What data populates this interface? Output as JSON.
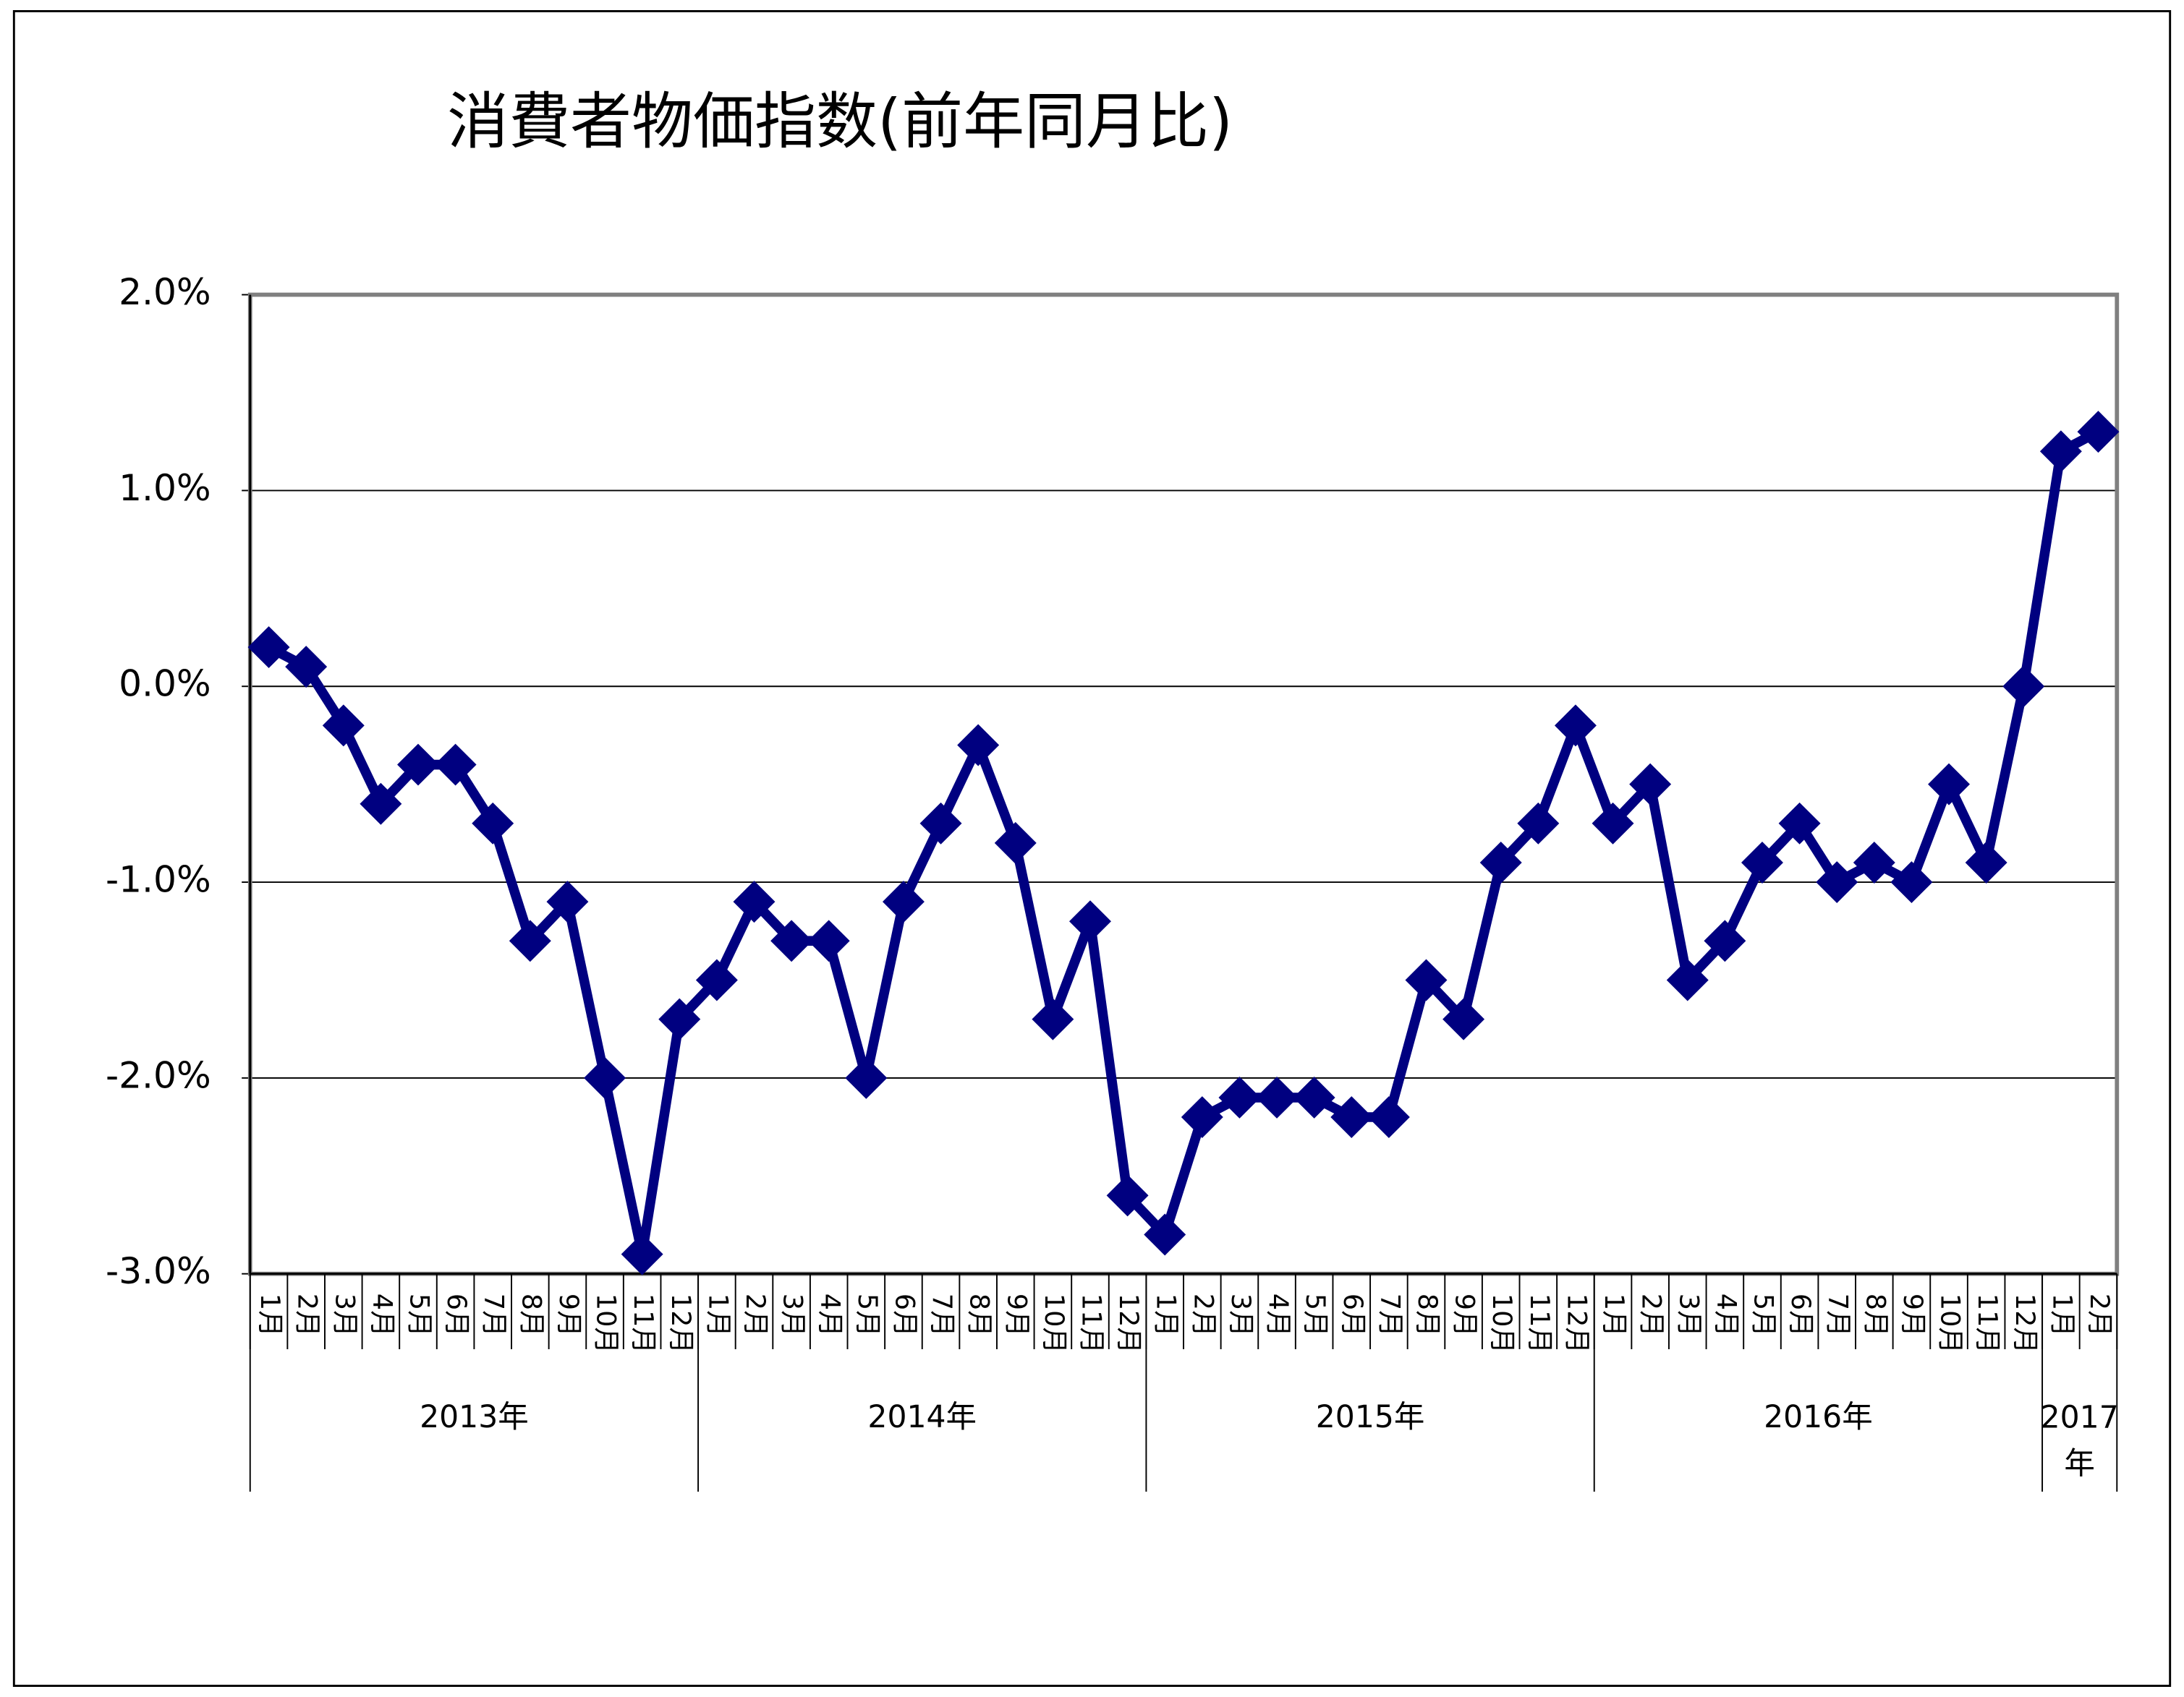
{
  "chart_data": {
    "type": "line",
    "title": "消費者物価指数(前年同月比)",
    "categories": [
      "1月",
      "2月",
      "3月",
      "4月",
      "5月",
      "6月",
      "7月",
      "8月",
      "9月",
      "10月",
      "11月",
      "12月",
      "1月",
      "2月",
      "3月",
      "4月",
      "5月",
      "6月",
      "7月",
      "8月",
      "9月",
      "10月",
      "11月",
      "12月",
      "1月",
      "2月",
      "3月",
      "4月",
      "5月",
      "6月",
      "7月",
      "8月",
      "9月",
      "10月",
      "11月",
      "12月",
      "1月",
      "2月",
      "3月",
      "4月",
      "5月",
      "6月",
      "7月",
      "8月",
      "9月",
      "10月",
      "11月",
      "12月",
      "1月",
      "2月"
    ],
    "groups": [
      "2013年",
      "2014年",
      "2015年",
      "2016年",
      "2017年"
    ],
    "series": [
      {
        "name": "消費者物価指数",
        "color": "#000080",
        "values": [
          0.2,
          0.1,
          -0.2,
          -0.6,
          -0.4,
          -0.4,
          -0.7,
          -1.3,
          -1.1,
          -2.0,
          -2.9,
          -1.7,
          -1.5,
          -1.1,
          -1.3,
          -1.3,
          -2.0,
          -1.1,
          -0.7,
          -0.3,
          -0.8,
          -1.7,
          -1.2,
          -2.6,
          -2.8,
          -2.2,
          -2.1,
          -2.1,
          -2.1,
          -2.2,
          -2.2,
          -1.5,
          -1.7,
          -0.9,
          -0.7,
          -0.2,
          -0.7,
          -0.5,
          -1.5,
          -1.3,
          -0.9,
          -0.7,
          -1.0,
          -0.9,
          -1.0,
          -0.5,
          -0.9,
          0.0,
          1.2,
          1.3
        ]
      }
    ],
    "ylim": [
      -3,
      2
    ],
    "yticks": [
      {
        "value": -3,
        "label": "-3.0%"
      },
      {
        "value": -2,
        "label": "-2.0%"
      },
      {
        "value": -1,
        "label": "-1.0%"
      },
      {
        "value": 0,
        "label": "0.0%"
      },
      {
        "value": 1,
        "label": "1.0%"
      },
      {
        "value": 2,
        "label": "2.0%"
      }
    ],
    "grid": true
  }
}
